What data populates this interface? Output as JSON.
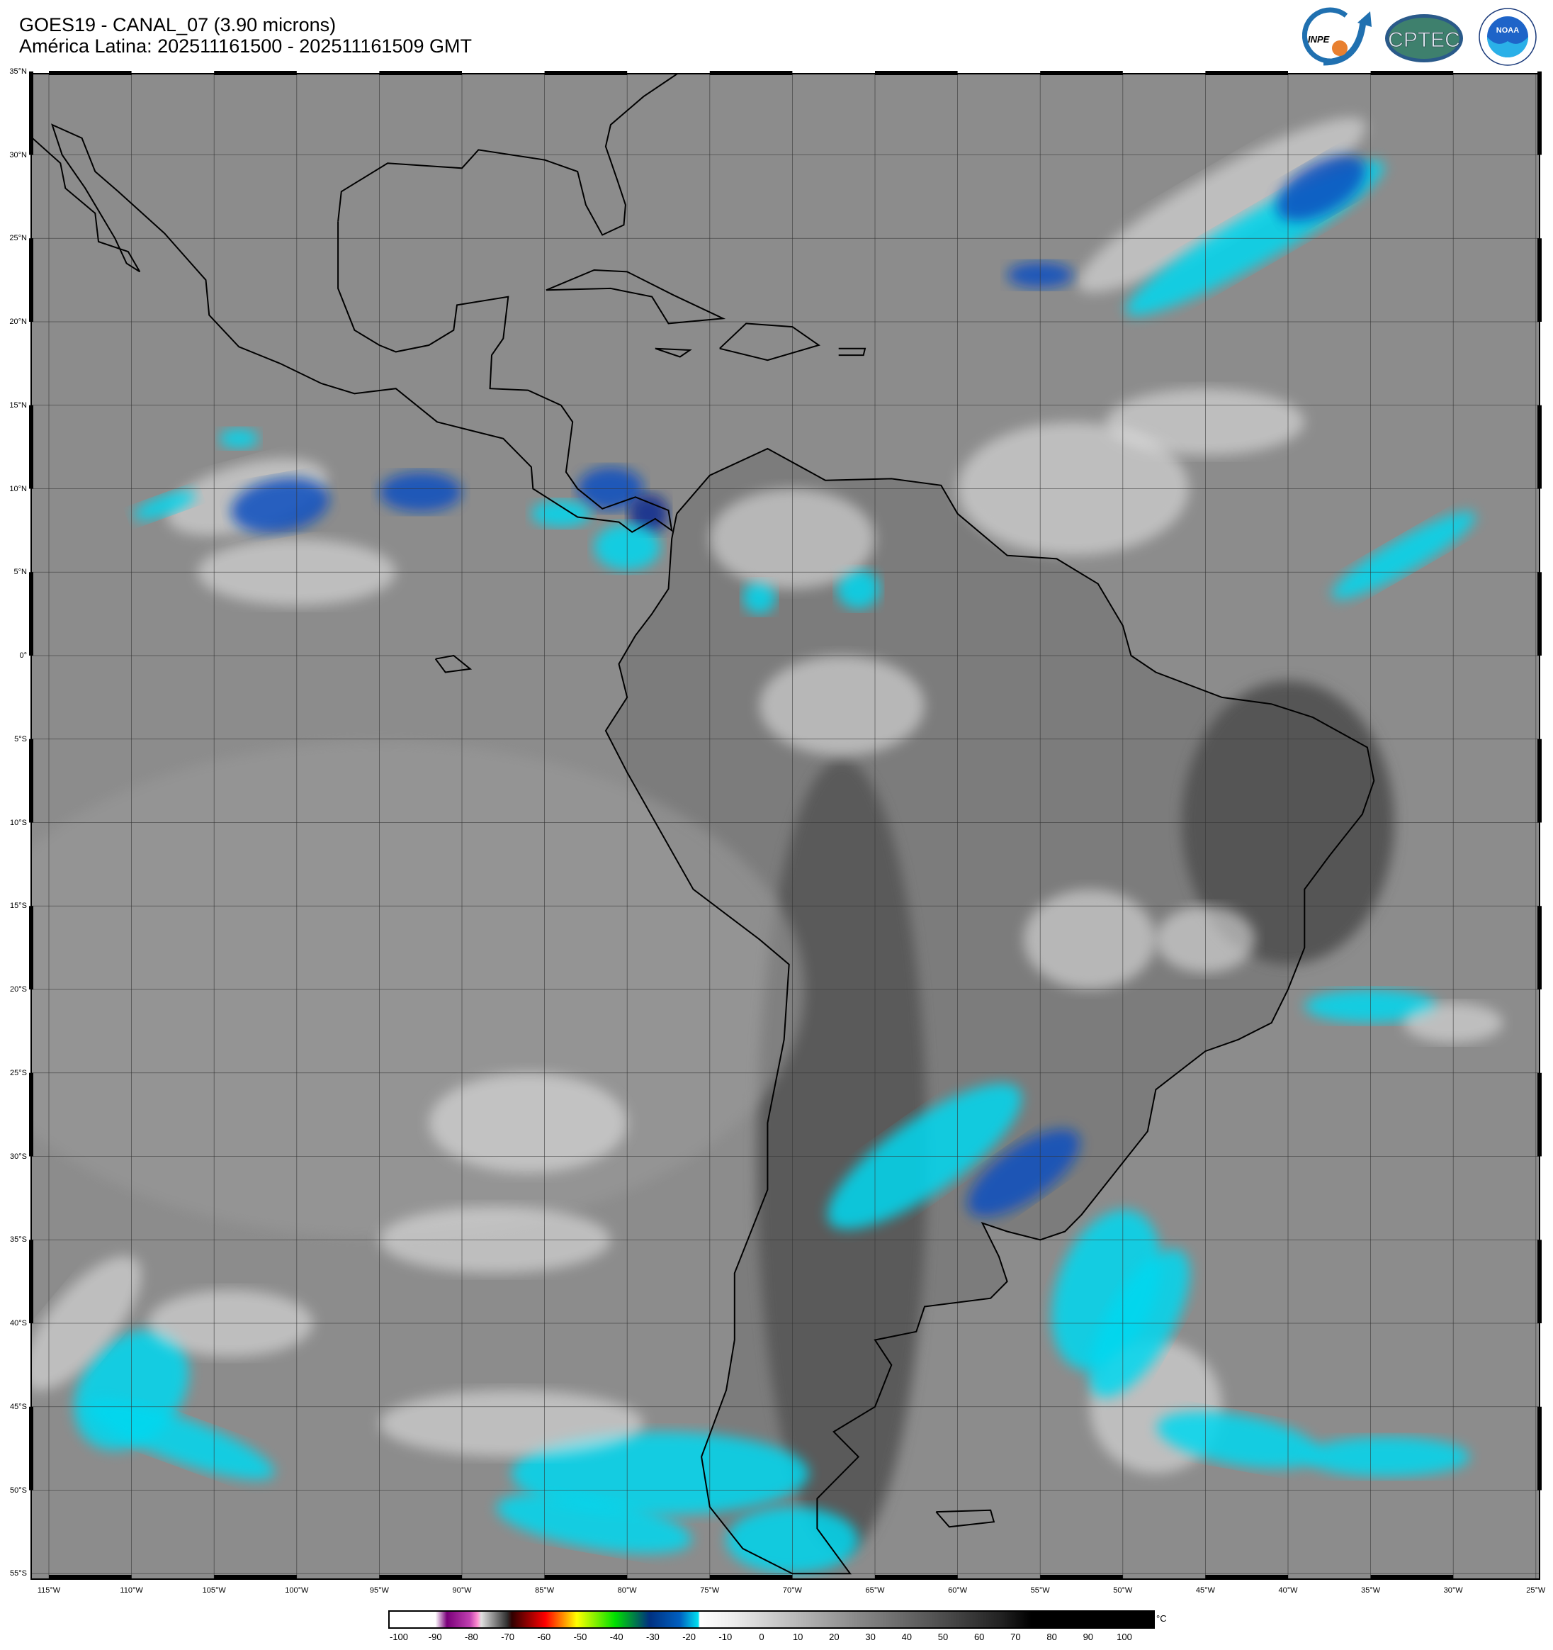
{
  "header": {
    "title": "GOES19 - CANAL_07 (3.90 microns)",
    "subtitle": "América Latina: 202511161500 - 202511161509 GMT"
  },
  "logos": {
    "inpe": "INPE",
    "cptec": "CPTEC",
    "noaa": "NOAA"
  },
  "map": {
    "lat_labels": [
      "35°N",
      "30°N",
      "25°N",
      "20°N",
      "15°N",
      "10°N",
      "5°N",
      "0°",
      "5°S",
      "10°S",
      "15°S",
      "20°S",
      "25°S",
      "30°S",
      "35°S",
      "40°S",
      "45°S",
      "50°S",
      "55°S"
    ],
    "lon_labels": [
      "115°W",
      "110°W",
      "105°W",
      "100°W",
      "95°W",
      "90°W",
      "85°W",
      "80°W",
      "75°W",
      "70°W",
      "65°W",
      "60°W",
      "55°W",
      "50°W",
      "45°W",
      "40°W",
      "35°W",
      "30°W",
      "25°W"
    ],
    "background_gray": "#8c8c8c",
    "cloud_cold_color": "#00d8f0",
    "cloud_coldest_color": "#0038a8"
  },
  "colorbar": {
    "unit": "°C",
    "ticks": [
      "-100",
      "-90",
      "-80",
      "-70",
      "-60",
      "-50",
      "-40",
      "-30",
      "-20",
      "-10",
      "0",
      "10",
      "20",
      "30",
      "40",
      "50",
      "60",
      "70",
      "80",
      "90",
      "100"
    ]
  }
}
